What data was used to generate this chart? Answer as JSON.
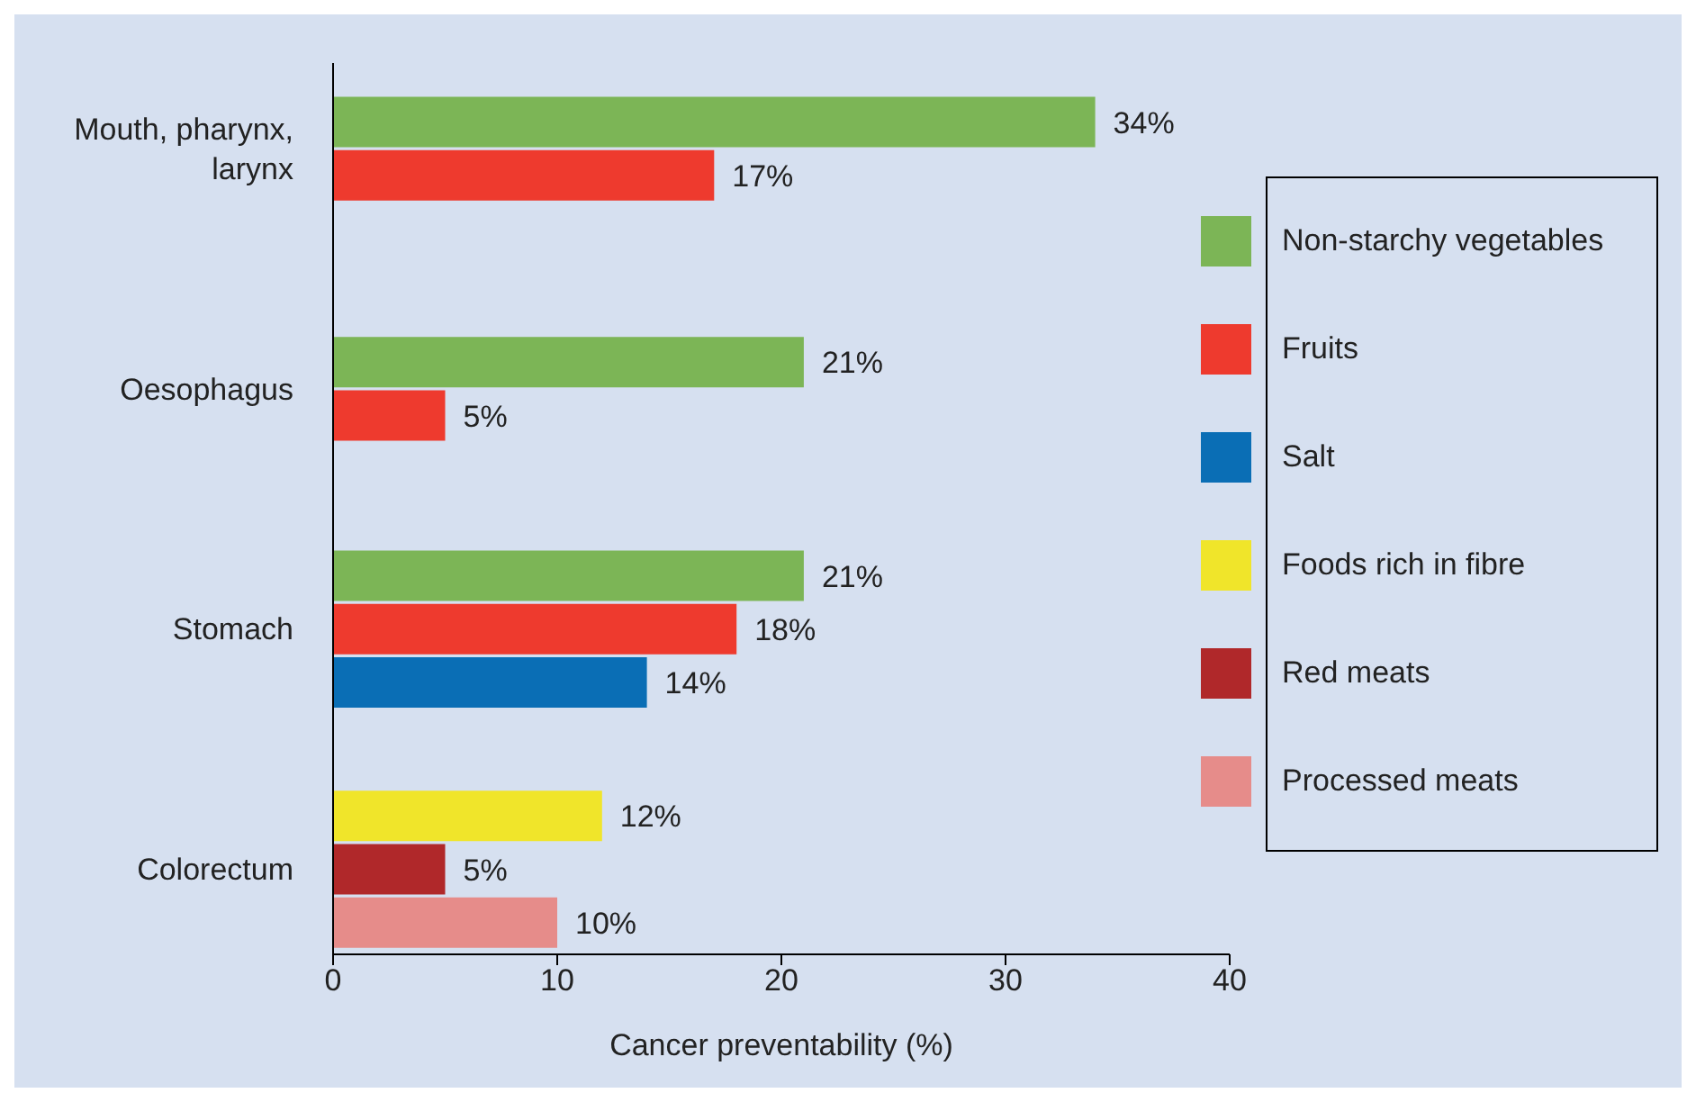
{
  "chart_data": {
    "type": "bar",
    "orientation": "horizontal",
    "xlabel": "Cancer preventability (%)",
    "categories": [
      "Mouth, pharynx, larynx",
      "Oesophagus",
      "Stomach",
      "Colorectum"
    ],
    "xlim": [
      0,
      40
    ],
    "xticks": [
      0,
      10,
      20,
      30,
      40
    ],
    "legend": "right",
    "series": [
      {
        "name": "Non-starchy vegetables",
        "color": "#7cb556",
        "values": [
          34,
          21,
          21,
          null
        ],
        "value_labels": [
          "34%",
          "21%",
          "21%",
          null
        ]
      },
      {
        "name": "Fruits",
        "color": "#ee3a2e",
        "values": [
          17,
          5,
          18,
          null
        ],
        "value_labels": [
          "17%",
          "5%",
          "18%",
          null
        ]
      },
      {
        "name": "Salt",
        "color": "#0a6eb5",
        "values": [
          null,
          null,
          14,
          null
        ],
        "value_labels": [
          null,
          null,
          "14%",
          null
        ]
      },
      {
        "name": "Foods rich in fibre",
        "color": "#f0e52a",
        "values": [
          null,
          null,
          null,
          12
        ],
        "value_labels": [
          null,
          null,
          null,
          "12%"
        ]
      },
      {
        "name": "Red meats",
        "color": "#b0282a",
        "values": [
          null,
          null,
          null,
          5
        ],
        "value_labels": [
          null,
          null,
          null,
          "5%"
        ]
      },
      {
        "name": "Processed meats",
        "color": "#e68c8a",
        "values": [
          null,
          null,
          null,
          10
        ],
        "value_labels": [
          null,
          null,
          null,
          "10%"
        ]
      }
    ]
  }
}
